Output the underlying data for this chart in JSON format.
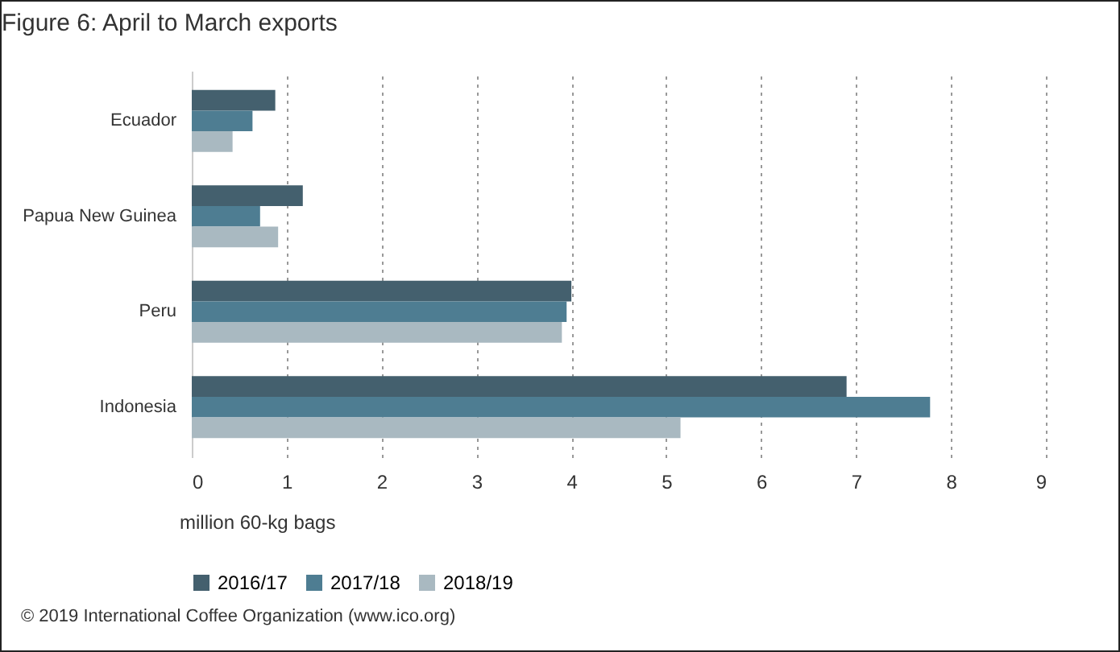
{
  "chart_data": {
    "type": "bar",
    "orientation": "horizontal",
    "title": "Figure 6: April to March exports",
    "xlabel": "million 60-kg bags",
    "categories": [
      "Ecuador",
      "Papua New Guinea",
      "Peru",
      "Indonesia"
    ],
    "series": [
      {
        "name": "2016/17",
        "color": "#44606e",
        "values": [
          0.88,
          1.17,
          4.0,
          6.9
        ]
      },
      {
        "name": "2017/18",
        "color": "#4e7d92",
        "values": [
          0.64,
          0.72,
          3.95,
          7.78
        ]
      },
      {
        "name": "2018/19",
        "color": "#a9b9c1",
        "values": [
          0.43,
          0.91,
          3.9,
          5.15
        ]
      }
    ],
    "xlim": [
      0,
      9
    ],
    "xticks": [
      0,
      1,
      2,
      3,
      4,
      5,
      6,
      7,
      8,
      9
    ],
    "grid": "x",
    "legend": "bottom",
    "annotations": [
      "© 2019 International Coffee Organization (www.ico.org)"
    ]
  }
}
